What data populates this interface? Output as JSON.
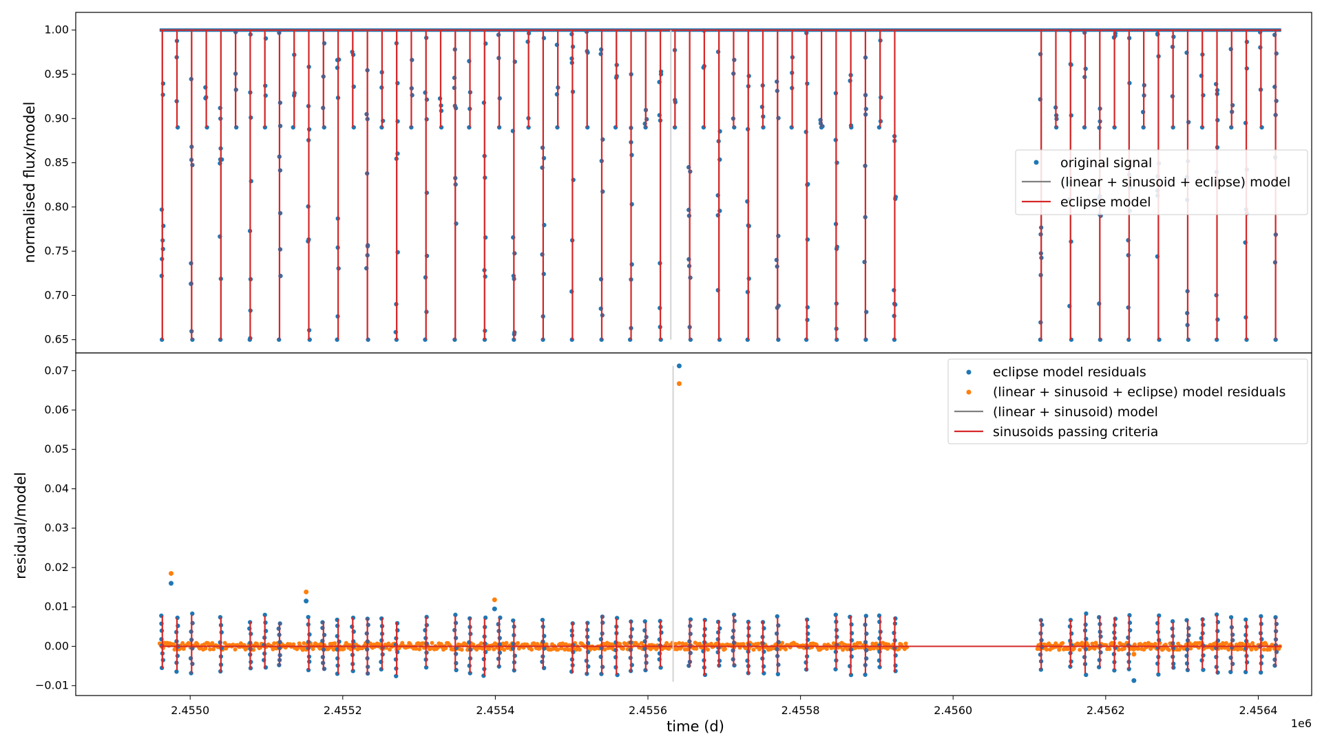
{
  "chart_data": [
    {
      "type": "scatter",
      "panel": "top",
      "ylabel": "normalised flux/model",
      "xlim": [
        2.45485,
        2.45647
      ],
      "ylim": [
        0.635,
        1.02
      ],
      "yticks": [
        "1.00",
        "0.95",
        "0.90",
        "0.85",
        "0.80",
        "0.75",
        "0.70",
        "0.65"
      ],
      "ytick_values": [
        1.0,
        0.95,
        0.9,
        0.85,
        0.8,
        0.75,
        0.7,
        0.65
      ],
      "grid": false,
      "legend_position": "center-right",
      "baseline": 1.0,
      "eclipse_minimum": 0.65,
      "eclipse_depth_secondary": 0.89,
      "gap_x": [
        2.45594,
        2.45611
      ],
      "x_span": [
        2.45496,
        2.45643
      ],
      "eclipse_period_x": 1.92e-05,
      "series": [
        {
          "name": "original signal",
          "kind": "scatter",
          "color": "#1f77b4"
        },
        {
          "name": "(linear + sinusoid + eclipse) model",
          "kind": "line",
          "color": "#808080"
        },
        {
          "name": "eclipse model",
          "kind": "line",
          "color": "#d62728"
        }
      ],
      "outlier_line": {
        "x": 2.45563,
        "y_range": [
          0.65,
          1.0
        ],
        "color": "#d3d3d3"
      }
    },
    {
      "type": "scatter",
      "panel": "bottom",
      "ylabel": "residual/model",
      "xlabel": "time (d)",
      "x_offset_label": "1e6",
      "xlim": [
        2.45485,
        2.45647
      ],
      "ylim": [
        -0.0125,
        0.0745
      ],
      "xticks": [
        "2.4550",
        "2.4552",
        "2.4554",
        "2.4556",
        "2.4558",
        "2.4560",
        "2.4562",
        "2.4564"
      ],
      "xtick_values": [
        2.455,
        2.4552,
        2.4554,
        2.4556,
        2.4558,
        2.456,
        2.4562,
        2.4564
      ],
      "yticks": [
        "0.07",
        "0.06",
        "0.05",
        "0.04",
        "0.03",
        "0.02",
        "0.01",
        "0.00",
        "−0.01"
      ],
      "ytick_values": [
        0.07,
        0.06,
        0.05,
        0.04,
        0.03,
        0.02,
        0.01,
        0.0,
        -0.01
      ],
      "grid": false,
      "legend_position": "top-right",
      "series": [
        {
          "name": "eclipse model residuals",
          "kind": "scatter",
          "color": "#1f77b4"
        },
        {
          "name": "(linear + sinusoid + eclipse) model residuals",
          "kind": "scatter",
          "color": "#ff7f0e"
        },
        {
          "name": "(linear + sinusoid) model",
          "kind": "line",
          "color": "#808080"
        },
        {
          "name": "sinusoids passing criteria",
          "kind": "line",
          "color": "#d62728"
        }
      ],
      "outliers": [
        {
          "x": 2.455641,
          "eclipse_residual": 0.0712,
          "full_residual": 0.0667
        },
        {
          "x": 2.454975,
          "eclipse_residual": 0.016,
          "full_residual": 0.0185
        },
        {
          "x": 2.455152,
          "eclipse_residual": 0.0115,
          "full_residual": 0.0138
        },
        {
          "x": 2.455399,
          "eclipse_residual": 0.0095,
          "full_residual": 0.0118
        },
        {
          "x": 2.456237,
          "eclipse_residual": -0.0087,
          "full_residual": -0.002
        }
      ],
      "outlier_line": {
        "x": 2.455633,
        "y_range": [
          -0.009,
          0.0712
        ],
        "color": "#d3d3d3"
      }
    }
  ]
}
